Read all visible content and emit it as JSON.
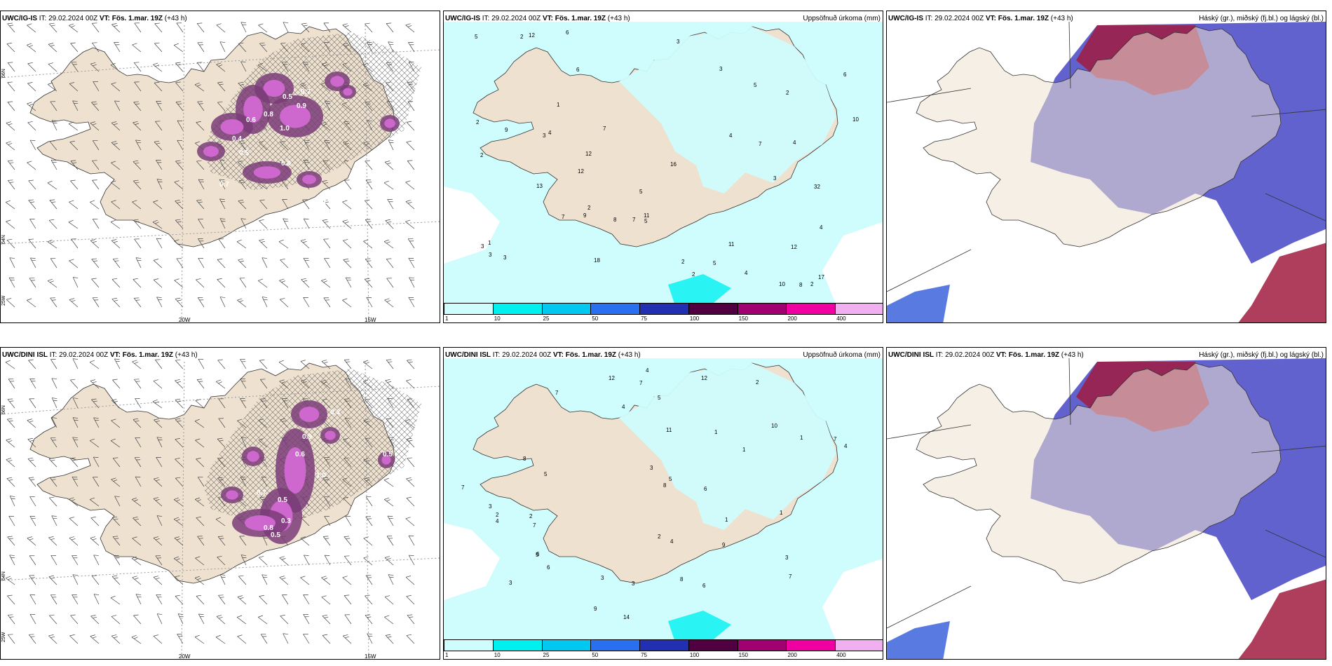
{
  "rows": [
    {
      "model": "UWC/IG-IS",
      "it_label": "IT:",
      "it_value": "29.02.2024 00Z",
      "vt_label": "VT:",
      "vt_value": "Fös. 1.mar. 19Z",
      "lead": "(+43 h)",
      "precip_values": [
        {
          "v": "0.5",
          "c": "p"
        },
        {
          "v": "0.7",
          "c": "p"
        },
        {
          "v": "0.9",
          "c": "p"
        },
        {
          "v": "1.0",
          "c": "p"
        },
        {
          "v": "0.8",
          "c": "p"
        },
        {
          "v": "0.6",
          "c": "p"
        },
        {
          "v": "0.3",
          "c": "p"
        },
        {
          "v": "0.7",
          "c": "p"
        },
        {
          "v": "0.5",
          "c": "p"
        },
        {
          "v": "0.4",
          "c": "p"
        },
        {
          "v": "0.6",
          "c": "p"
        },
        {
          "v": "0.9",
          "c": "p"
        }
      ],
      "accum_values": [
        "5",
        "3",
        "2",
        "3",
        "2",
        "6",
        "7",
        "12",
        "9",
        "7",
        "4",
        "3",
        "5",
        "10",
        "12",
        "11",
        "16",
        "10",
        "6",
        "7",
        "8",
        "4",
        "5",
        "7",
        "12",
        "4",
        "2",
        "1",
        "2",
        "3",
        "2",
        "8",
        "3",
        "4",
        "5",
        "2",
        "9",
        "12",
        "13",
        "18",
        "2",
        "17",
        "32",
        "4",
        "5",
        "3",
        "11",
        "1",
        "6",
        "3",
        "2"
      ]
    },
    {
      "model": "UWC/DINI ISL",
      "it_label": "IT:",
      "it_value": "29.02.2024 00Z",
      "vt_label": "VT:",
      "vt_value": "Fös. 1.mar. 19Z",
      "lead": "(+43 h)",
      "precip_values": [
        {
          "v": "0.3",
          "c": "p"
        },
        {
          "v": "0.5",
          "c": "p"
        },
        {
          "v": "0.9",
          "c": "p"
        },
        {
          "v": "0.7",
          "c": "p"
        },
        {
          "v": "0.4",
          "c": "p"
        },
        {
          "v": "1.0",
          "c": "p"
        },
        {
          "v": "0.6",
          "c": "p"
        },
        {
          "v": "0.3",
          "c": "p"
        },
        {
          "v": "0.5",
          "c": "p"
        },
        {
          "v": "0.8",
          "c": "p"
        },
        {
          "v": "0.4",
          "c": "p"
        },
        {
          "v": "0.5",
          "c": "p"
        }
      ],
      "accum_values": [
        "3",
        "2",
        "7",
        "10",
        "4",
        "5",
        "7",
        "6",
        "1",
        "1",
        "3",
        "4",
        "9",
        "8",
        "14",
        "12",
        "7",
        "7",
        "5",
        "9",
        "6",
        "7",
        "4",
        "5",
        "3",
        "3",
        "2",
        "12",
        "11",
        "1",
        "8",
        "6",
        "8",
        "2",
        "3",
        "4",
        "7",
        "6",
        "1",
        "1",
        "4",
        "5",
        "3",
        "2"
      ]
    }
  ],
  "wind_panel": {
    "lon_labels": [
      "20W",
      "15W"
    ],
    "lat_labels": [
      "66N",
      "64N",
      "25W"
    ]
  },
  "precip_panel": {
    "title": "Uppsöfnuð úrkoma (mm)",
    "colorbar": {
      "colors": [
        "#cffcfc",
        "#00f0f0",
        "#00c8f0",
        "#2870f0",
        "#2030b0",
        "#500040",
        "#a00070",
        "#f000a0",
        "#f0b0f0"
      ],
      "ticks": [
        "1",
        "10",
        "25",
        "50",
        "75",
        "100",
        "150",
        "200",
        "400"
      ]
    }
  },
  "cloud_panel": {
    "title": "Háský (gr.), miðský (fj.bl.) og lágský (bl.)"
  }
}
